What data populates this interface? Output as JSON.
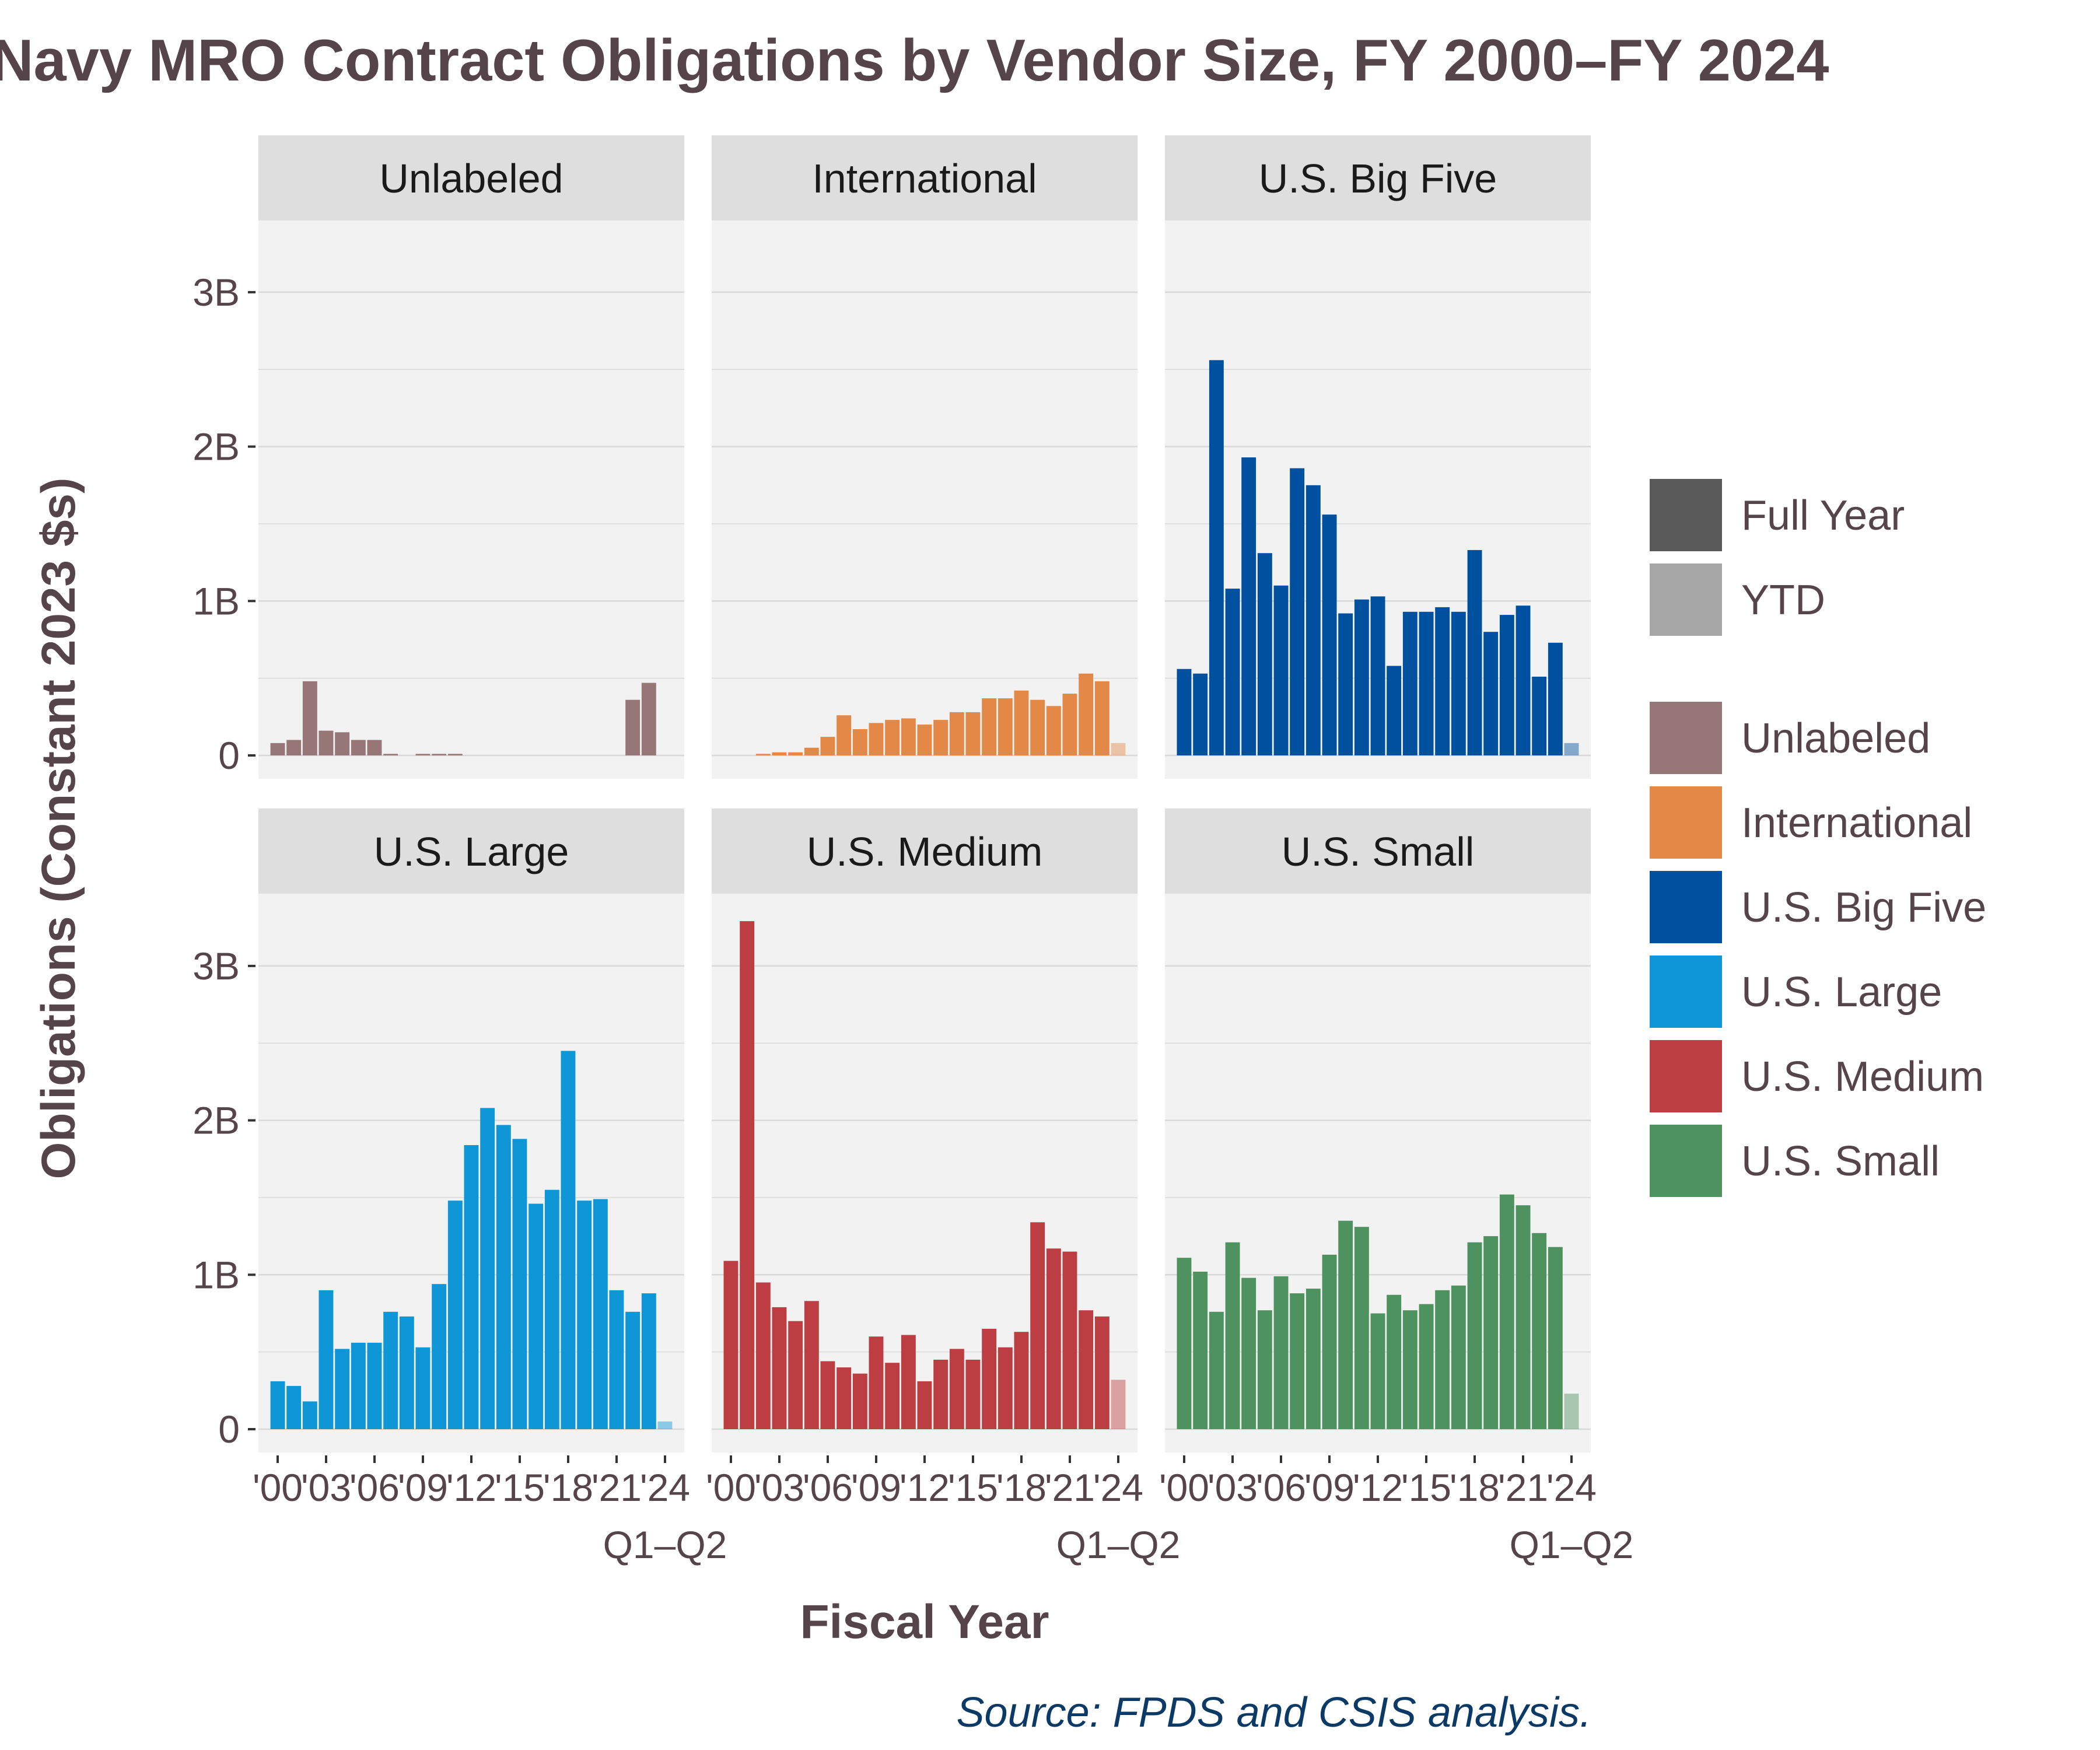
{
  "title": "Navy MRO Contract Obligations by Vendor Size, FY 2000–FY 2024",
  "source": "Source: FPDS and CSIS analysis.",
  "colors": {
    "panel_bg": "#f2f2f2",
    "strip_bg": "#dedede",
    "grid": "#d9d9d9",
    "text": "#554449",
    "source": "#0b3a66"
  },
  "legend": {
    "period": [
      {
        "label": "Full Year",
        "color": "#595959"
      },
      {
        "label": "YTD",
        "color": "#a6a6a6"
      }
    ],
    "vendors": [
      {
        "label": "Unlabeled",
        "color": "#967677"
      },
      {
        "label": "International",
        "color": "#e48847"
      },
      {
        "label": "U.S. Big Five",
        "color": "#0050a0"
      },
      {
        "label": "U.S. Large",
        "color": "#0e96d6"
      },
      {
        "label": "U.S. Medium",
        "color": "#bd3e42"
      },
      {
        "label": "U.S. Small",
        "color": "#4e935f"
      }
    ]
  },
  "chart_data": {
    "type": "bar",
    "facet": "vendor size",
    "xlabel": "Fiscal Year",
    "ylabel": "Obligations (Constant 2023 $s)",
    "x": [
      2000,
      2001,
      2002,
      2003,
      2004,
      2005,
      2006,
      2007,
      2008,
      2009,
      2010,
      2011,
      2012,
      2013,
      2014,
      2015,
      2016,
      2017,
      2018,
      2019,
      2020,
      2021,
      2022,
      2023,
      2024
    ],
    "x_tick_labels": [
      "'00",
      "'03",
      "'06",
      "'09",
      "'12",
      "'15",
      "'18",
      "'21",
      "'24"
    ],
    "x_tick_years": [
      2000,
      2003,
      2006,
      2009,
      2012,
      2015,
      2018,
      2021,
      2024
    ],
    "x_note": "Q1–Q2",
    "ylim": [
      0,
      3.5
    ],
    "y_ticks": [
      0,
      1,
      2,
      3
    ],
    "y_tick_labels": [
      "0",
      "1B",
      "2B",
      "3B"
    ],
    "y_unit": "billions (constant 2023 $)",
    "ytd_year": 2024,
    "grid": true,
    "legend_position": "right",
    "panels": [
      {
        "name": "Unlabeled",
        "color": "#967677",
        "values": [
          0.08,
          0.1,
          0.48,
          0.16,
          0.15,
          0.1,
          0.1,
          0.01,
          0,
          0.01,
          0.01,
          0.01,
          0,
          0,
          0,
          0,
          0,
          0,
          0,
          0,
          0,
          0,
          0.36,
          0.47,
          0
        ]
      },
      {
        "name": "International",
        "color": "#e48847",
        "values": [
          0.0,
          0.0,
          0.01,
          0.02,
          0.02,
          0.05,
          0.12,
          0.26,
          0.17,
          0.21,
          0.23,
          0.24,
          0.2,
          0.23,
          0.28,
          0.28,
          0.37,
          0.37,
          0.42,
          0.36,
          0.32,
          0.4,
          0.53,
          0.48,
          0.08
        ]
      },
      {
        "name": "U.S. Big Five",
        "color": "#0050a0",
        "values": [
          0.56,
          0.53,
          2.56,
          1.08,
          1.93,
          1.31,
          1.1,
          1.86,
          1.75,
          1.56,
          0.92,
          1.01,
          1.03,
          0.58,
          0.93,
          0.93,
          0.96,
          0.93,
          1.33,
          0.8,
          0.91,
          0.97,
          0.51,
          0.73,
          0.08
        ]
      },
      {
        "name": "U.S. Large",
        "color": "#0e96d6",
        "values": [
          0.31,
          0.28,
          0.18,
          0.9,
          0.52,
          0.56,
          0.56,
          0.76,
          0.73,
          0.53,
          0.94,
          1.48,
          1.84,
          2.08,
          1.97,
          1.88,
          1.46,
          1.55,
          2.45,
          1.48,
          1.49,
          0.9,
          0.76,
          0.88,
          0.05
        ]
      },
      {
        "name": "U.S. Medium",
        "color": "#bd3e42",
        "values": [
          1.09,
          3.29,
          0.95,
          0.79,
          0.7,
          0.83,
          0.44,
          0.4,
          0.36,
          0.6,
          0.43,
          0.61,
          0.31,
          0.45,
          0.52,
          0.45,
          0.65,
          0.53,
          0.63,
          1.34,
          1.17,
          1.15,
          0.77,
          0.73,
          0.32
        ]
      },
      {
        "name": "U.S. Small",
        "color": "#4e935f",
        "values": [
          1.11,
          1.02,
          0.76,
          1.21,
          0.98,
          0.77,
          0.99,
          0.88,
          0.91,
          1.13,
          1.35,
          1.31,
          0.75,
          0.87,
          0.77,
          0.81,
          0.9,
          0.93,
          1.21,
          1.25,
          1.52,
          1.45,
          1.27,
          1.18,
          0.23
        ]
      }
    ]
  }
}
